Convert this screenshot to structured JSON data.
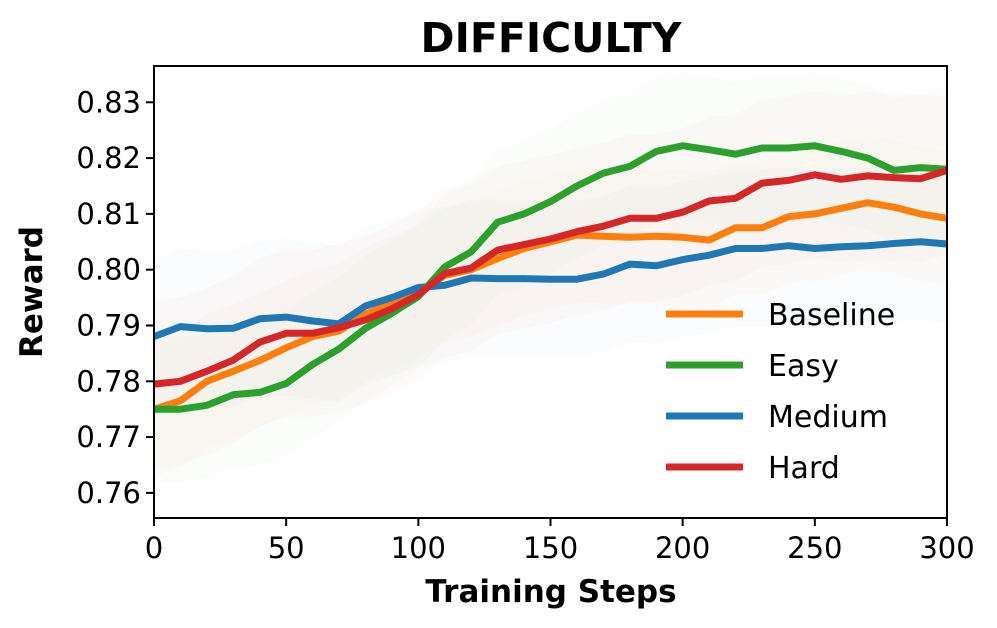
{
  "chart_data": {
    "type": "line",
    "title": "DIFFICULTY",
    "xlabel": "Training Steps",
    "ylabel": "Reward",
    "xlim": [
      0,
      300
    ],
    "ylim": [
      0.7555,
      0.8365
    ],
    "xticks": [
      0,
      50,
      100,
      150,
      200,
      250,
      300
    ],
    "yticks": [
      0.76,
      0.77,
      0.78,
      0.79,
      0.8,
      0.81,
      0.82,
      0.83
    ],
    "ytick_labels": [
      "0.76",
      "0.77",
      "0.78",
      "0.79",
      "0.80",
      "0.81",
      "0.82",
      "0.83"
    ],
    "grid": false,
    "legend_position": "lower-right",
    "x": [
      0,
      10,
      20,
      30,
      40,
      50,
      60,
      70,
      80,
      90,
      100,
      110,
      120,
      130,
      140,
      150,
      160,
      170,
      180,
      190,
      200,
      210,
      220,
      230,
      240,
      250,
      260,
      270,
      280,
      290,
      300
    ],
    "series": [
      {
        "name": "Baseline",
        "color": "#ff7f0e",
        "values": [
          0.775,
          0.7765,
          0.78,
          0.7818,
          0.7837,
          0.786,
          0.788,
          0.789,
          0.792,
          0.794,
          0.796,
          0.799,
          0.8,
          0.802,
          0.8038,
          0.805,
          0.8062,
          0.806,
          0.8058,
          0.806,
          0.8058,
          0.8053,
          0.8075,
          0.8075,
          0.8095,
          0.81,
          0.811,
          0.812,
          0.8112,
          0.81,
          0.8092
        ]
      },
      {
        "name": "Easy",
        "color": "#2ca02c",
        "values": [
          0.775,
          0.775,
          0.7757,
          0.7776,
          0.778,
          0.7796,
          0.783,
          0.7858,
          0.7895,
          0.7922,
          0.7952,
          0.8005,
          0.8032,
          0.8085,
          0.81,
          0.8122,
          0.815,
          0.8173,
          0.8185,
          0.8212,
          0.8222,
          0.8215,
          0.8207,
          0.8218,
          0.8218,
          0.8222,
          0.8212,
          0.82,
          0.8178,
          0.8183,
          0.818
        ]
      },
      {
        "name": "Medium",
        "color": "#1f77b4",
        "values": [
          0.788,
          0.7898,
          0.7894,
          0.7895,
          0.7912,
          0.7915,
          0.7908,
          0.7903,
          0.7935,
          0.795,
          0.7968,
          0.7972,
          0.7985,
          0.7984,
          0.7984,
          0.7983,
          0.7983,
          0.7992,
          0.801,
          0.8007,
          0.8018,
          0.8026,
          0.8038,
          0.8038,
          0.8043,
          0.8038,
          0.8041,
          0.8043,
          0.8047,
          0.805,
          0.8046
        ]
      },
      {
        "name": "Hard",
        "color": "#d62728",
        "values": [
          0.7795,
          0.78,
          0.7818,
          0.7838,
          0.787,
          0.7886,
          0.7886,
          0.7896,
          0.791,
          0.793,
          0.7955,
          0.7993,
          0.8003,
          0.8035,
          0.8045,
          0.8055,
          0.8068,
          0.8078,
          0.8092,
          0.8092,
          0.8103,
          0.8123,
          0.8128,
          0.8155,
          0.816,
          0.817,
          0.8162,
          0.8168,
          0.8165,
          0.8163,
          0.8178
        ]
      }
    ]
  }
}
